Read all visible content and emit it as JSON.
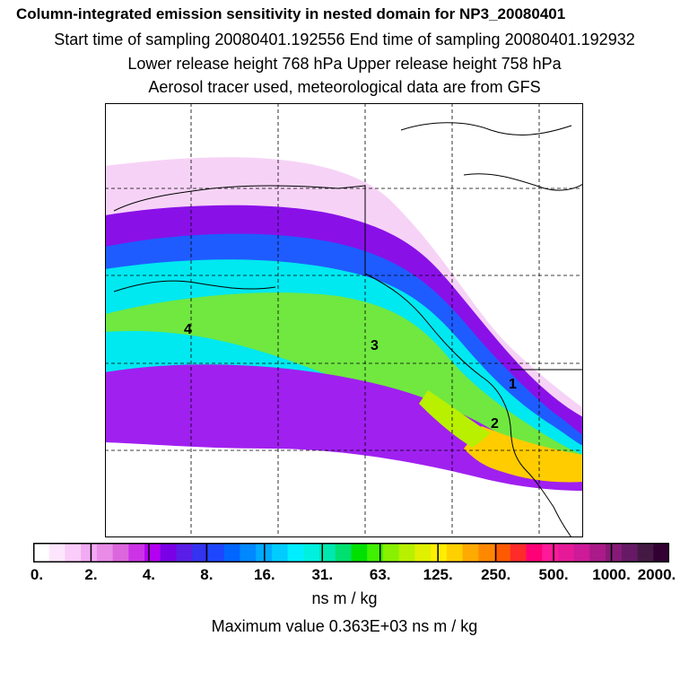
{
  "header": {
    "title": "Column-integrated emission sensitivity in nested domain for NP3_20080401",
    "sampling": "Start time of sampling 20080401.192556     End time of sampling 20080401.192932",
    "release": "Lower release height  768 hPa        Upper release height  758 hPa",
    "tracer": "Aerosol tracer used, meteorological data are from GFS"
  },
  "map": {
    "point_labels": [
      "4",
      "3",
      "1",
      "2"
    ]
  },
  "colorbar": {
    "tick_labels": [
      "0.",
      "2.",
      "4.",
      "8.",
      "16.",
      "31.",
      "63.",
      "125.",
      "250.",
      "500.",
      "1000.",
      "2000."
    ],
    "colors": [
      "#ffffff",
      "#fde6fd",
      "#f9ccf9",
      "#f2aaf2",
      "#e88ce8",
      "#dc66dc",
      "#cc33e6",
      "#b300f0",
      "#7a00e6",
      "#5a1ee6",
      "#3333f0",
      "#1e46ff",
      "#0066ff",
      "#0088ff",
      "#00aaff",
      "#00ccff",
      "#00eeff",
      "#00f0e0",
      "#00e8b0",
      "#00e070",
      "#00e000",
      "#40f000",
      "#88f000",
      "#b8f000",
      "#e0f000",
      "#ffee00",
      "#ffd000",
      "#ffaa00",
      "#ff8800",
      "#ff5a00",
      "#ff2a2a",
      "#ff0077",
      "#ff1a99",
      "#e61a99",
      "#cc1a99",
      "#aa1a88",
      "#881a77",
      "#661a66",
      "#441a44",
      "#330033"
    ],
    "units": "ns m / kg"
  },
  "footer": {
    "max_value": "Maximum value  0.363E+03 ns m / kg"
  }
}
